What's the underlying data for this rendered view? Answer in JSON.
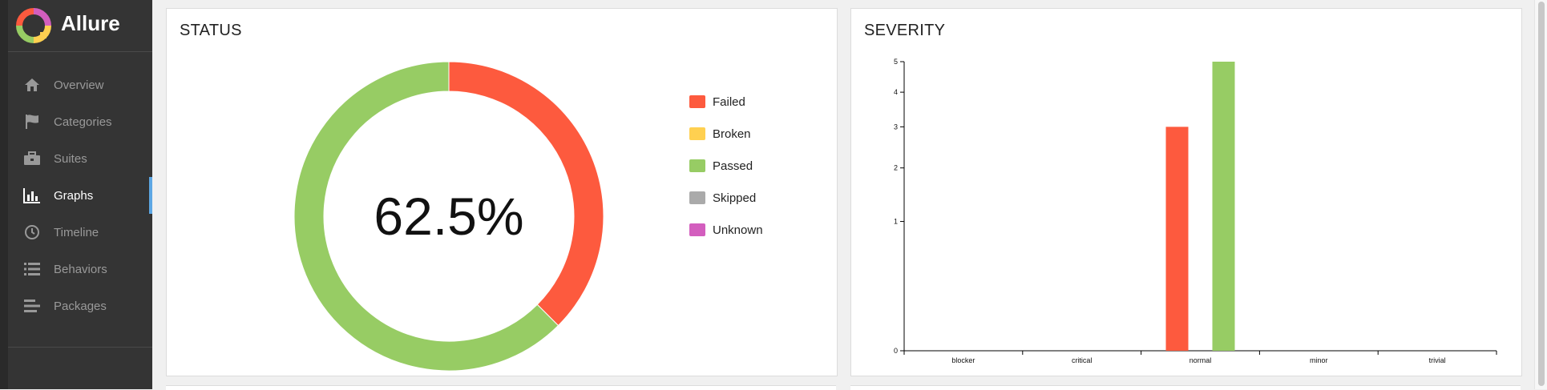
{
  "app": {
    "name": "Allure"
  },
  "sidebar": {
    "items": [
      {
        "label": "Overview",
        "icon": "home-icon",
        "active": false
      },
      {
        "label": "Categories",
        "icon": "flag-icon",
        "active": false
      },
      {
        "label": "Suites",
        "icon": "briefcase-icon",
        "active": false
      },
      {
        "label": "Graphs",
        "icon": "bar-chart-icon",
        "active": true
      },
      {
        "label": "Timeline",
        "icon": "clock-icon",
        "active": false
      },
      {
        "label": "Behaviors",
        "icon": "list-icon",
        "active": false
      },
      {
        "label": "Packages",
        "icon": "align-left-icon",
        "active": false
      }
    ]
  },
  "status_widget": {
    "title": "STATUS",
    "center_text": "62.5%",
    "legend": [
      {
        "label": "Failed",
        "color": "#fd5a3e"
      },
      {
        "label": "Broken",
        "color": "#ffd050"
      },
      {
        "label": "Passed",
        "color": "#97cc64"
      },
      {
        "label": "Skipped",
        "color": "#aaaaaa"
      },
      {
        "label": "Unknown",
        "color": "#d35ebe"
      }
    ]
  },
  "severity_widget": {
    "title": "SEVERITY"
  },
  "chart_data": [
    {
      "type": "pie",
      "title": "STATUS",
      "labels": [
        "Failed",
        "Broken",
        "Passed",
        "Skipped",
        "Unknown"
      ],
      "values": [
        3,
        0,
        5,
        0,
        0
      ],
      "colors": [
        "#fd5a3e",
        "#ffd050",
        "#97cc64",
        "#aaaaaa",
        "#d35ebe"
      ],
      "center_label": "62.5%",
      "legend_position": "right"
    },
    {
      "type": "bar",
      "title": "SEVERITY",
      "categories": [
        "blocker",
        "critical",
        "normal",
        "minor",
        "trivial"
      ],
      "series": [
        {
          "name": "Failed",
          "color": "#fd5a3e",
          "values": [
            0,
            0,
            3,
            0,
            0
          ]
        },
        {
          "name": "Passed",
          "color": "#97cc64",
          "values": [
            0,
            0,
            5,
            0,
            0
          ]
        }
      ],
      "yticks": [
        0,
        1,
        2,
        3,
        4,
        5
      ],
      "ylim": [
        0,
        5
      ],
      "yscale": "sqrt",
      "grid": false
    }
  ]
}
